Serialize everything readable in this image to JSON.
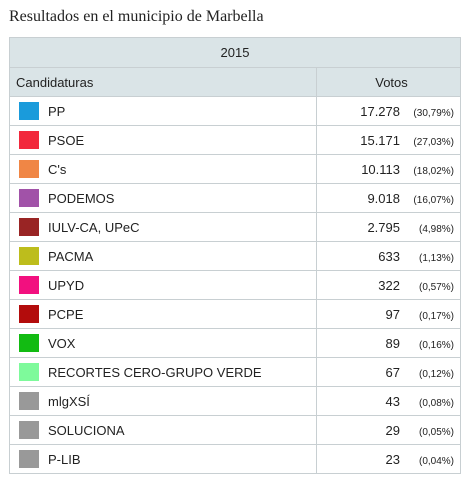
{
  "header": {
    "title": "Resultados en el municipio de Marbella"
  },
  "table": {
    "year": "2015",
    "columns": [
      "Candidaturas",
      "Votos"
    ],
    "rows": [
      {
        "name": "PP",
        "color": "#1a9bdb",
        "votes": "17.278",
        "percent": "(30,79%)"
      },
      {
        "name": "PSOE",
        "color": "#f2283c",
        "votes": "15.171",
        "percent": "(27,03%)"
      },
      {
        "name": "C's",
        "color": "#f08645",
        "votes": "10.113",
        "percent": "(18,02%)"
      },
      {
        "name": "PODEMOS",
        "color": "#a152a8",
        "votes": "9.018",
        "percent": "(16,07%)"
      },
      {
        "name": "IULV-CA, UPeC",
        "color": "#992424",
        "votes": "2.795",
        "percent": "(4,98%)"
      },
      {
        "name": "PACMA",
        "color": "#bdbd1c",
        "votes": "633",
        "percent": "(1,13%)"
      },
      {
        "name": "UPYD",
        "color": "#f2107f",
        "votes": "322",
        "percent": "(0,57%)"
      },
      {
        "name": "PCPE",
        "color": "#b30c0c",
        "votes": "97",
        "percent": "(0,17%)"
      },
      {
        "name": "VOX",
        "color": "#12bb12",
        "votes": "89",
        "percent": "(0,16%)"
      },
      {
        "name": "RECORTES CERO-GRUPO VERDE",
        "color": "#7efa9b",
        "votes": "67",
        "percent": "(0,12%)"
      },
      {
        "name": "mlgXSÍ",
        "color": "#999999",
        "votes": "43",
        "percent": "(0,08%)"
      },
      {
        "name": "SOLUCIONA",
        "color": "#999999",
        "votes": "29",
        "percent": "(0,05%)"
      },
      {
        "name": "P-LIB",
        "color": "#999999",
        "votes": "23",
        "percent": "(0,04%)"
      }
    ]
  }
}
